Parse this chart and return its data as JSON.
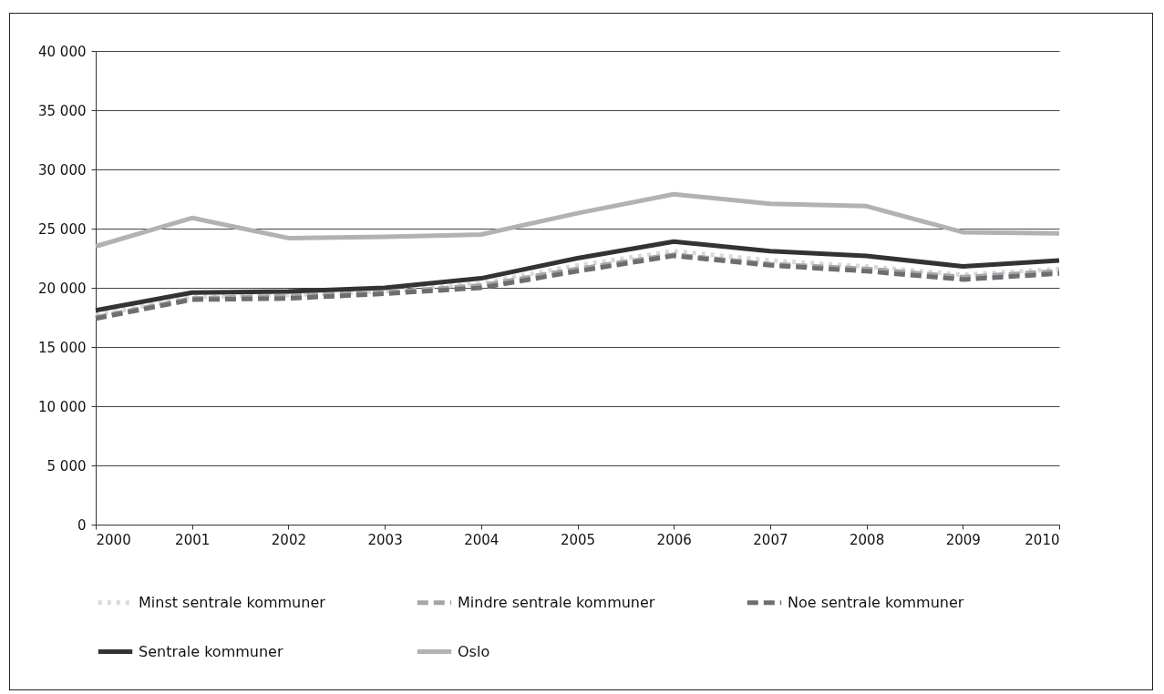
{
  "chart_data": {
    "type": "line",
    "x": [
      2000,
      2001,
      2002,
      2003,
      2004,
      2005,
      2006,
      2007,
      2008,
      2009,
      2010
    ],
    "xlim": [
      2000,
      2010
    ],
    "xticks": [
      2000,
      2001,
      2002,
      2003,
      2004,
      2005,
      2006,
      2007,
      2008,
      2009,
      2010
    ],
    "ylim": [
      0,
      40000
    ],
    "yticks": [
      {
        "value": 0,
        "label": "0"
      },
      {
        "value": 5000,
        "label": "5 000"
      },
      {
        "value": 10000,
        "label": "10 000"
      },
      {
        "value": 15000,
        "label": "15 000"
      },
      {
        "value": 20000,
        "label": "20 000"
      },
      {
        "value": 25000,
        "label": "25 000"
      },
      {
        "value": 30000,
        "label": "30 000"
      },
      {
        "value": 35000,
        "label": "35 000"
      },
      {
        "value": 40000,
        "label": "40 000"
      }
    ],
    "grid": "y",
    "legend": "bottom",
    "marker": "none",
    "series": [
      {
        "name": "Minst sentrale kommuner",
        "color": "#d9d9da",
        "line_style": "dotted",
        "values": [
          17700,
          19200,
          19400,
          19700,
          20400,
          21900,
          23100,
          22300,
          21800,
          21100,
          21600
        ]
      },
      {
        "name": "Mindre sentrale kommuner",
        "color": "#a6a6a8",
        "line_style": "dashed",
        "values": [
          17500,
          19100,
          19300,
          19600,
          20200,
          21600,
          22800,
          22000,
          21600,
          20900,
          21400
        ]
      },
      {
        "name": "Noe sentrale kommuner",
        "color": "#6d6e71",
        "line_style": "dashed",
        "values": [
          17400,
          19000,
          19100,
          19500,
          20000,
          21400,
          22700,
          21900,
          21400,
          20700,
          21200
        ]
      },
      {
        "name": "Sentrale kommuner",
        "color": "#333333",
        "line_style": "solid",
        "values": [
          18100,
          19600,
          19700,
          20000,
          20800,
          22500,
          23900,
          23100,
          22700,
          21800,
          22300
        ]
      },
      {
        "name": "Oslo",
        "color": "#b1b2b4",
        "line_style": "solid",
        "values": [
          23500,
          25900,
          24200,
          24300,
          24500,
          26300,
          27900,
          27100,
          26900,
          24700,
          24600
        ]
      }
    ]
  }
}
